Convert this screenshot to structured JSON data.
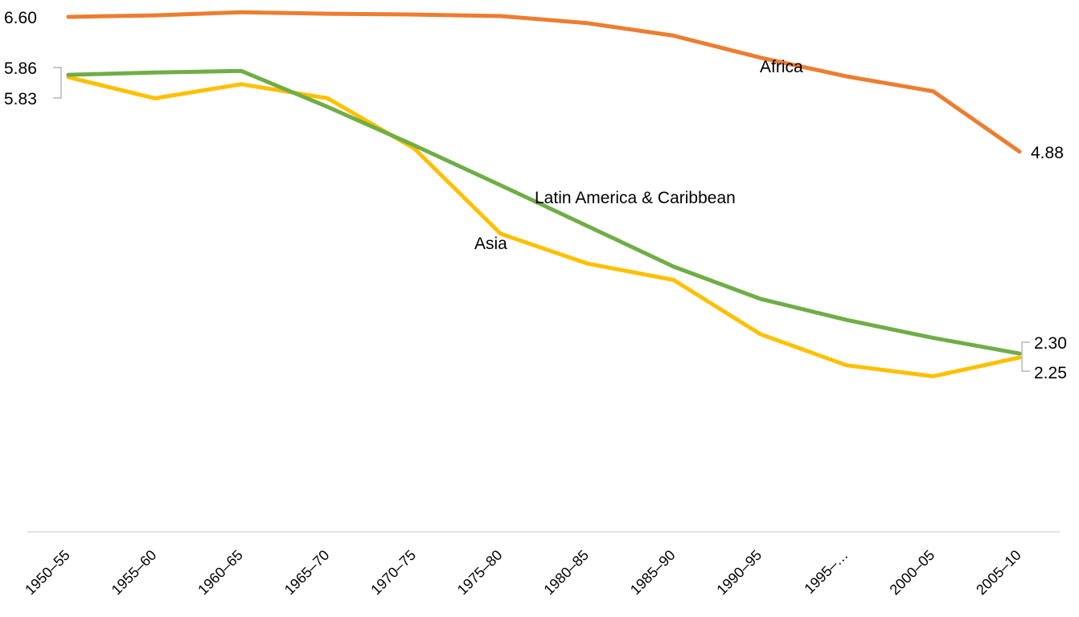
{
  "chart_data": {
    "type": "line",
    "categories": [
      "1950–55",
      "1955–60",
      "1960–65",
      "1965–70",
      "1970–75",
      "1975–80",
      "1980–85",
      "1985–90",
      "1990–95",
      "1995–…",
      "2000–05",
      "2005–10"
    ],
    "ylim": [
      0,
      6.7
    ],
    "grid": false,
    "legend": "none",
    "series": [
      {
        "name": "Africa",
        "color": "#ED7D31",
        "values": [
          6.6,
          6.62,
          6.66,
          6.64,
          6.63,
          6.61,
          6.52,
          6.36,
          6.08,
          5.84,
          5.65,
          4.88
        ],
        "end_label": "4.88",
        "start_label": "6.60"
      },
      {
        "name": "Latin America & Caribbean",
        "color": "#70AD47",
        "values": [
          5.86,
          5.89,
          5.91,
          5.45,
          4.96,
          4.45,
          3.93,
          3.41,
          3.0,
          2.73,
          2.5,
          2.3
        ],
        "start_label": "5.86",
        "end_label": "2.30"
      },
      {
        "name": "Asia",
        "color": "#FFC000",
        "values": [
          5.83,
          5.56,
          5.74,
          5.56,
          4.92,
          3.83,
          3.45,
          3.24,
          2.55,
          2.15,
          2.01,
          2.25
        ],
        "start_label": "5.83",
        "end_label": "2.25"
      }
    ],
    "x_axis_color": "#D9D9D9"
  }
}
